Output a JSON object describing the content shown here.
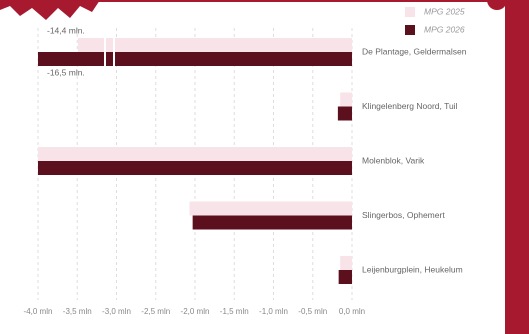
{
  "chart_data": {
    "type": "bar",
    "orientation": "horizontal",
    "categories": [
      "De Plantage, Geldermalsen",
      "Klingelenberg Noord, Tuil",
      "Molenblok, Varik",
      "Slingerbos, Ophemert",
      "Leijenburgplein, Heukelum"
    ],
    "series": [
      {
        "name": "MPG 2025",
        "color": "#f7e3e8",
        "values": [
          -14.4,
          -0.15,
          -4.0,
          -2.07,
          -0.15
        ],
        "value_labels": [
          "-14,4 mln.",
          null,
          null,
          null,
          null
        ]
      },
      {
        "name": "MPG 2026",
        "color": "#5c0f1c",
        "values": [
          -16.5,
          -0.18,
          -4.0,
          -2.03,
          -0.17
        ],
        "value_labels": [
          "-16,5 mln.",
          null,
          null,
          null,
          null
        ]
      }
    ],
    "xlim": [
      -4.0,
      0.0
    ],
    "xticks": [
      {
        "value": -4.0,
        "label": "-4,0 mln"
      },
      {
        "value": -3.5,
        "label": "-3,5 mln"
      },
      {
        "value": -3.0,
        "label": "-3,0 mln"
      },
      {
        "value": -2.5,
        "label": "-2,5 mln"
      },
      {
        "value": -2.0,
        "label": "-2,0 mln"
      },
      {
        "value": -1.5,
        "label": "-1,5 mln"
      },
      {
        "value": -1.0,
        "label": "-1,0 mln"
      },
      {
        "value": -0.5,
        "label": "-0,5 mln"
      },
      {
        "value": 0.0,
        "label": "0,0 mln"
      }
    ],
    "grid": true,
    "legend": "top-right"
  }
}
